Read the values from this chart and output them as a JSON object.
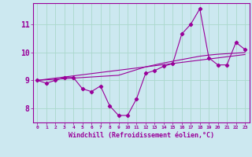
{
  "xlabel": "Windchill (Refroidissement éolien,°C)",
  "x_hours": [
    0,
    1,
    2,
    3,
    4,
    5,
    6,
    7,
    8,
    9,
    10,
    11,
    12,
    13,
    14,
    15,
    16,
    17,
    18,
    19,
    20,
    21,
    22,
    23
  ],
  "main_line": [
    9.0,
    8.9,
    9.0,
    9.1,
    9.1,
    8.7,
    8.6,
    8.8,
    8.1,
    7.75,
    7.75,
    8.35,
    9.25,
    9.35,
    9.5,
    9.6,
    10.65,
    11.0,
    11.55,
    9.8,
    9.55,
    9.55,
    10.35,
    10.1
  ],
  "trend_line1": [
    9.0,
    9.04,
    9.08,
    9.12,
    9.16,
    9.2,
    9.24,
    9.28,
    9.32,
    9.36,
    9.4,
    9.44,
    9.48,
    9.52,
    9.56,
    9.6,
    9.64,
    9.68,
    9.72,
    9.76,
    9.8,
    9.84,
    9.88,
    9.92
  ],
  "trend_line2": [
    9.0,
    9.02,
    9.04,
    9.06,
    9.08,
    9.1,
    9.12,
    9.14,
    9.16,
    9.18,
    9.28,
    9.38,
    9.48,
    9.55,
    9.62,
    9.68,
    9.74,
    9.8,
    9.86,
    9.9,
    9.93,
    9.95,
    9.97,
    9.99
  ],
  "line_color": "#990099",
  "bg_color": "#cce8f0",
  "grid_color": "#aad8cc",
  "ylim": [
    7.5,
    11.75
  ],
  "yticks": [
    8,
    9,
    10,
    11
  ],
  "xlim": [
    -0.5,
    23.5
  ]
}
